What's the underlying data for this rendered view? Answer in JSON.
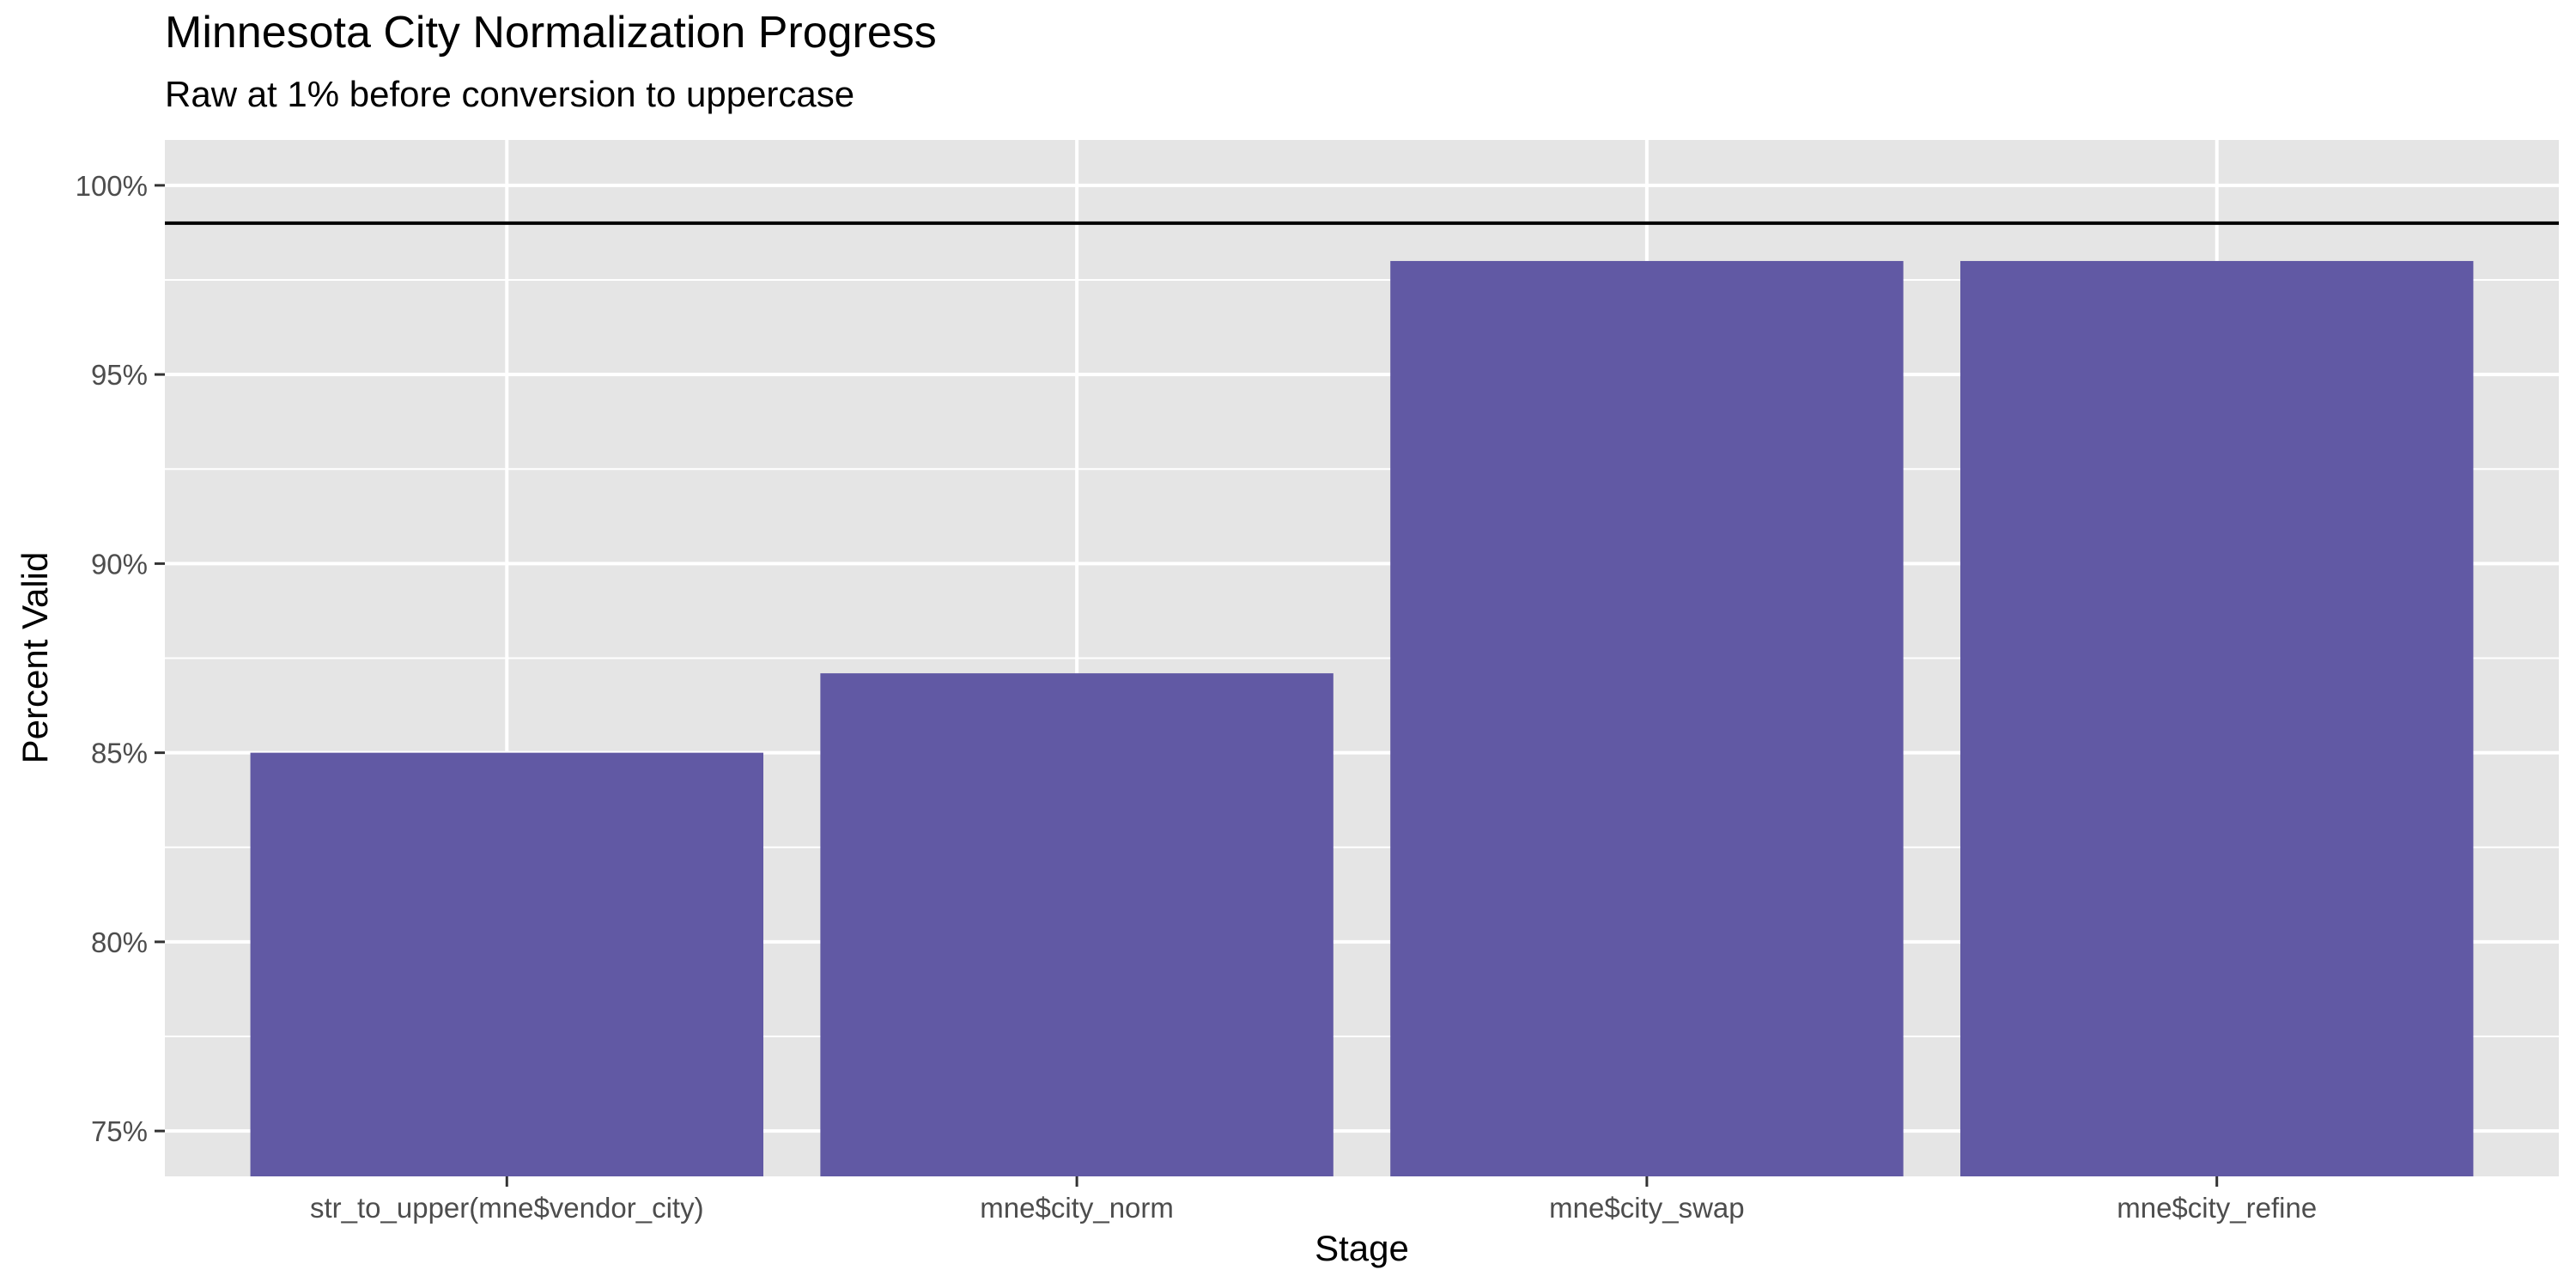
{
  "chart_data": {
    "type": "bar",
    "title": "Minnesota City Normalization Progress",
    "subtitle": "Raw at 1% before conversion to uppercase",
    "xlabel": "Stage",
    "ylabel": "Percent Valid",
    "categories": [
      "str_to_upper(mne$vendor_city)",
      "mne$city_norm",
      "mne$city_swap",
      "mne$city_refine"
    ],
    "values": [
      85.0,
      87.1,
      98.0,
      98.0
    ],
    "ylim": [
      73.8,
      101.2
    ],
    "yticks": [
      75,
      80,
      85,
      90,
      95,
      100
    ],
    "ytick_labels": [
      "75%",
      "80%",
      "85%",
      "90%",
      "95%",
      "100%"
    ],
    "reference_line": 99,
    "grid": true,
    "legend": "none",
    "colors": {
      "bar": "#6159A4",
      "panel": "#E5E5E5",
      "grid": "#FFFFFF",
      "reference_line": "#000000"
    }
  }
}
